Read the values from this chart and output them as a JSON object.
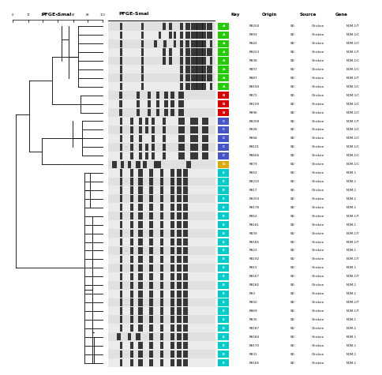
{
  "title_left": "PFGE-Smal",
  "title_gel": "PFGE-Smal",
  "headers": [
    "Key",
    "Origin",
    "Source",
    "Gene"
  ],
  "rows": [
    {
      "key": "A",
      "color": "#22cc00",
      "sample": "PB250",
      "origin": "SD",
      "source": "Chicken",
      "gene": "NDM-1/T"
    },
    {
      "key": "A",
      "color": "#22cc00",
      "sample": "PB93",
      "origin": "SD",
      "source": "Chicken",
      "gene": "NDM-1/C"
    },
    {
      "key": "A",
      "color": "#22cc00",
      "sample": "PB43",
      "origin": "SD",
      "source": "Chicken",
      "gene": "NDM-1/C"
    },
    {
      "key": "A",
      "color": "#22cc00",
      "sample": "PB223",
      "origin": "SD",
      "source": "Chicken",
      "gene": "NDM-1/T"
    },
    {
      "key": "A",
      "color": "#22cc00",
      "sample": "PB38",
      "origin": "SD",
      "source": "Chicken",
      "gene": "NDM-1/C"
    },
    {
      "key": "A",
      "color": "#22cc00",
      "sample": "PB97",
      "origin": "SD",
      "source": "Chicken",
      "gene": "NDM-1/C"
    },
    {
      "key": "A",
      "color": "#22cc00",
      "sample": "PB87",
      "origin": "SD",
      "source": "Chicken",
      "gene": "NDM-1/T"
    },
    {
      "key": "A",
      "color": "#22cc00",
      "sample": "PB194",
      "origin": "SD",
      "source": "Chicken",
      "gene": "NDM-1/C"
    },
    {
      "key": "B",
      "color": "#dd0000",
      "sample": "PB72",
      "origin": "SD",
      "source": "Chicken",
      "gene": "NDM-1/C"
    },
    {
      "key": "B",
      "color": "#dd0000",
      "sample": "PB109",
      "origin": "SD",
      "source": "Chicken",
      "gene": "NDM-1/C"
    },
    {
      "key": "B",
      "color": "#dd0000",
      "sample": "PB96",
      "origin": "SD",
      "source": "Chicken",
      "gene": "NDM-1/C"
    },
    {
      "key": "C",
      "color": "#4455cc",
      "sample": "PB209",
      "origin": "SD",
      "source": "Chicken",
      "gene": "NDM-1/T"
    },
    {
      "key": "C",
      "color": "#4455cc",
      "sample": "PB28",
      "origin": "SD",
      "source": "Chicken",
      "gene": "NDM-1/C"
    },
    {
      "key": "C",
      "color": "#4455cc",
      "sample": "PB58",
      "origin": "SD",
      "source": "Chicken",
      "gene": "NDM-1/C"
    },
    {
      "key": "C",
      "color": "#4455cc",
      "sample": "PB121",
      "origin": "SD",
      "source": "Chicken",
      "gene": "NDM-1/C"
    },
    {
      "key": "C",
      "color": "#4455cc",
      "sample": "PB666",
      "origin": "SD",
      "source": "Chicken",
      "gene": "NDM-1/C"
    },
    {
      "key": "D",
      "color": "#ddaa00",
      "sample": "PB79",
      "origin": "SD",
      "source": "Chicken",
      "gene": "NDM-1/C"
    },
    {
      "key": "E",
      "color": "#00cccc",
      "sample": "PB53",
      "origin": "SD",
      "source": "Chicken",
      "gene": "NDM-1"
    },
    {
      "key": "E",
      "color": "#00cccc",
      "sample": "PB210",
      "origin": "SD",
      "source": "Chicken",
      "gene": "NDM-1"
    },
    {
      "key": "E",
      "color": "#00cccc",
      "sample": "PB17",
      "origin": "SD",
      "source": "Chicken",
      "gene": "NDM-1"
    },
    {
      "key": "E",
      "color": "#00cccc",
      "sample": "PB203",
      "origin": "SD",
      "source": "Chicken",
      "gene": "NDM-1"
    },
    {
      "key": "E",
      "color": "#00cccc",
      "sample": "PB178",
      "origin": "SD",
      "source": "Chicken",
      "gene": "NDM-1"
    },
    {
      "key": "E",
      "color": "#00cccc",
      "sample": "PB52",
      "origin": "SD",
      "source": "Chicken",
      "gene": "NDM-1/T"
    },
    {
      "key": "E",
      "color": "#00cccc",
      "sample": "PB181",
      "origin": "SD",
      "source": "Chicken",
      "gene": "NDM-1"
    },
    {
      "key": "E",
      "color": "#00cccc",
      "sample": "PB39",
      "origin": "SD",
      "source": "Chicken",
      "gene": "NDM-1/T"
    },
    {
      "key": "E",
      "color": "#00cccc",
      "sample": "PB185",
      "origin": "SD",
      "source": "Chicken",
      "gene": "NDM-1/T"
    },
    {
      "key": "E",
      "color": "#00cccc",
      "sample": "PB23",
      "origin": "SD",
      "source": "Chicken",
      "gene": "NDM-1"
    },
    {
      "key": "E",
      "color": "#00cccc",
      "sample": "PB192",
      "origin": "SD",
      "source": "Chicken",
      "gene": "NDM-1/T"
    },
    {
      "key": "E",
      "color": "#00cccc",
      "sample": "PB15",
      "origin": "SD",
      "source": "Chicken",
      "gene": "NDM-1"
    },
    {
      "key": "E",
      "color": "#00cccc",
      "sample": "PB167",
      "origin": "SD",
      "source": "Chicken",
      "gene": "NDM-1/T"
    },
    {
      "key": "E",
      "color": "#00cccc",
      "sample": "PB182",
      "origin": "SD",
      "source": "Chicken",
      "gene": "NDM-1"
    },
    {
      "key": "E",
      "color": "#00cccc",
      "sample": "PB3",
      "origin": "SD",
      "source": "Chicken",
      "gene": "NDM-1"
    },
    {
      "key": "E",
      "color": "#00cccc",
      "sample": "PB50",
      "origin": "SD",
      "source": "Chicken",
      "gene": "NDM-1/T"
    },
    {
      "key": "E",
      "color": "#00cccc",
      "sample": "PB69",
      "origin": "SD",
      "source": "Chicken",
      "gene": "NDM-1/T"
    },
    {
      "key": "E",
      "color": "#00cccc",
      "sample": "PB35",
      "origin": "SD",
      "source": "Chicken",
      "gene": "NDM-1"
    },
    {
      "key": "E",
      "color": "#00cccc",
      "sample": "PB187",
      "origin": "SD",
      "source": "Chicken",
      "gene": "NDM-1"
    },
    {
      "key": "E",
      "color": "#00cccc",
      "sample": "PB184",
      "origin": "SD",
      "source": "Chicken",
      "gene": "NDM-1"
    },
    {
      "key": "E",
      "color": "#00cccc",
      "sample": "PB170",
      "origin": "SD",
      "source": "Chicken",
      "gene": "NDM-1"
    },
    {
      "key": "E",
      "color": "#00cccc",
      "sample": "PB31",
      "origin": "SD",
      "source": "Chicken",
      "gene": "NDM-1"
    },
    {
      "key": "E",
      "color": "#00cccc",
      "sample": "PB166",
      "origin": "SD",
      "source": "Chicken",
      "gene": "NDM-1"
    }
  ],
  "scale_labels": [
    "0",
    "17",
    "33",
    "50",
    "67",
    "83",
    "100"
  ],
  "scale_values": [
    0.0,
    0.17,
    0.33,
    0.5,
    0.67,
    0.83,
    1.0
  ],
  "background_color": "#ffffff",
  "gel_bg_even": "#e0e0e0",
  "gel_bg_odd": "#ebebeb"
}
